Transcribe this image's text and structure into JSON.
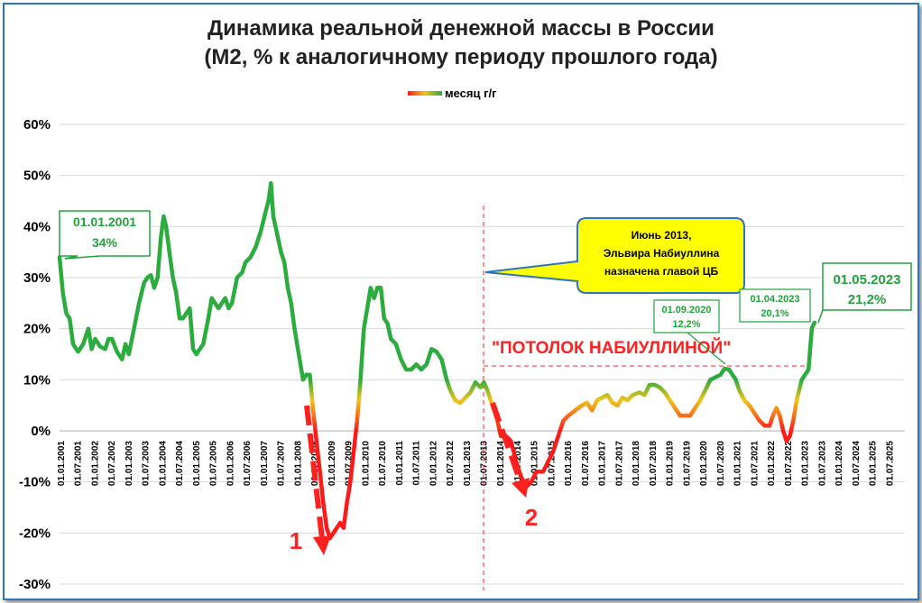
{
  "chart_data": {
    "type": "line",
    "title": "Динамика реальной денежной массы в России",
    "subtitle": "(М2, % к аналогичному периоду прошлого года)",
    "legend": "месяц г/г",
    "legend_position": "top-center",
    "grid": "horizontal",
    "ylim": [
      -30,
      60
    ],
    "y_ticks": [
      "60%",
      "50%",
      "40%",
      "30%",
      "20%",
      "10%",
      "0%",
      "-10%",
      "-20%",
      "-30%"
    ],
    "x_ticks": [
      "01.01.2001",
      "01.07.2001",
      "01.01.2002",
      "01.07.2002",
      "01.01.2003",
      "01.07.2003",
      "01.01.2004",
      "01.07.2004",
      "01.01.2005",
      "01.07.2005",
      "01.01.2006",
      "01.07.2006",
      "01.01.2007",
      "01.07.2007",
      "01.01.2008",
      "01.07.2008",
      "01.01.2009",
      "01.07.2009",
      "01.01.2010",
      "01.07.2010",
      "01.01.2011",
      "01.07.2011",
      "01.01.2012",
      "01.07.2012",
      "01.01.2013",
      "01.07.2013",
      "01.01.2014",
      "01.07.2014",
      "01.01.2015",
      "01.07.2015",
      "01.01.2016",
      "01.07.2016",
      "01.01.2017",
      "01.07.2017",
      "01.01.2018",
      "01.07.2018",
      "01.01.2019",
      "01.07.2019",
      "01.01.2020",
      "01.07.2020",
      "01.01.2021",
      "01.07.2021",
      "01.01.2022",
      "01.07.2022",
      "01.01.2023",
      "01.07.2023",
      "01.01.2024",
      "01.07.2024",
      "01.01.2025",
      "01.07.2025"
    ],
    "series": [
      {
        "name": "месяц г/г",
        "points": [
          [
            2001.0,
            34
          ],
          [
            2001.1,
            27
          ],
          [
            2001.2,
            23
          ],
          [
            2001.3,
            22
          ],
          [
            2001.4,
            17
          ],
          [
            2001.55,
            15.5
          ],
          [
            2001.7,
            17
          ],
          [
            2001.85,
            20
          ],
          [
            2001.95,
            16
          ],
          [
            2002.05,
            18
          ],
          [
            2002.2,
            16.5
          ],
          [
            2002.35,
            16
          ],
          [
            2002.45,
            18
          ],
          [
            2002.55,
            18
          ],
          [
            2002.7,
            15.5
          ],
          [
            2002.85,
            14
          ],
          [
            2002.95,
            17
          ],
          [
            2003.05,
            15
          ],
          [
            2003.2,
            20
          ],
          [
            2003.35,
            25
          ],
          [
            2003.5,
            29
          ],
          [
            2003.6,
            30
          ],
          [
            2003.7,
            30.5
          ],
          [
            2003.8,
            28
          ],
          [
            2003.9,
            30
          ],
          [
            2004.0,
            38
          ],
          [
            2004.08,
            42
          ],
          [
            2004.15,
            40
          ],
          [
            2004.25,
            35
          ],
          [
            2004.35,
            30
          ],
          [
            2004.45,
            27
          ],
          [
            2004.55,
            22
          ],
          [
            2004.65,
            22
          ],
          [
            2004.75,
            23
          ],
          [
            2004.85,
            24
          ],
          [
            2004.95,
            16
          ],
          [
            2005.05,
            15
          ],
          [
            2005.15,
            16
          ],
          [
            2005.25,
            17
          ],
          [
            2005.4,
            22
          ],
          [
            2005.5,
            26
          ],
          [
            2005.6,
            25
          ],
          [
            2005.7,
            24
          ],
          [
            2005.8,
            25
          ],
          [
            2005.9,
            26
          ],
          [
            2006.0,
            24
          ],
          [
            2006.1,
            25
          ],
          [
            2006.25,
            30
          ],
          [
            2006.4,
            31
          ],
          [
            2006.5,
            33
          ],
          [
            2006.65,
            34
          ],
          [
            2006.8,
            36
          ],
          [
            2006.95,
            39
          ],
          [
            2007.1,
            43
          ],
          [
            2007.18,
            45
          ],
          [
            2007.25,
            48.5
          ],
          [
            2007.32,
            42
          ],
          [
            2007.42,
            39
          ],
          [
            2007.55,
            35
          ],
          [
            2007.65,
            33
          ],
          [
            2007.75,
            28
          ],
          [
            2007.85,
            25
          ],
          [
            2007.95,
            20
          ],
          [
            2008.05,
            16
          ],
          [
            2008.2,
            10
          ],
          [
            2008.3,
            11
          ],
          [
            2008.4,
            11
          ],
          [
            2008.5,
            4
          ],
          [
            2008.6,
            -2
          ],
          [
            2008.7,
            -8
          ],
          [
            2008.8,
            -14
          ],
          [
            2008.9,
            -19
          ],
          [
            2009.0,
            -21
          ],
          [
            2009.1,
            -20
          ],
          [
            2009.2,
            -19
          ],
          [
            2009.3,
            -18
          ],
          [
            2009.4,
            -19
          ],
          [
            2009.5,
            -14
          ],
          [
            2009.6,
            -10
          ],
          [
            2009.7,
            -4
          ],
          [
            2009.8,
            2
          ],
          [
            2009.9,
            10
          ],
          [
            2010.0,
            20
          ],
          [
            2010.1,
            24
          ],
          [
            2010.2,
            28
          ],
          [
            2010.3,
            26
          ],
          [
            2010.4,
            28
          ],
          [
            2010.5,
            28
          ],
          [
            2010.6,
            22
          ],
          [
            2010.7,
            21
          ],
          [
            2010.8,
            18
          ],
          [
            2010.95,
            17
          ],
          [
            2011.1,
            14
          ],
          [
            2011.25,
            12
          ],
          [
            2011.4,
            12
          ],
          [
            2011.55,
            13
          ],
          [
            2011.7,
            12
          ],
          [
            2011.85,
            13
          ],
          [
            2012.0,
            16
          ],
          [
            2012.15,
            15.5
          ],
          [
            2012.3,
            14
          ],
          [
            2012.45,
            10
          ],
          [
            2012.55,
            8
          ],
          [
            2012.7,
            6
          ],
          [
            2012.85,
            5.5
          ],
          [
            2013.0,
            6.5
          ],
          [
            2013.15,
            7.5
          ],
          [
            2013.3,
            9.5
          ],
          [
            2013.45,
            8.5
          ],
          [
            2013.55,
            9.5
          ],
          [
            2013.65,
            8
          ],
          [
            2013.8,
            5
          ],
          [
            2013.95,
            2
          ],
          [
            2014.05,
            -1
          ],
          [
            2014.2,
            -1
          ],
          [
            2014.35,
            -2
          ],
          [
            2014.5,
            -6
          ],
          [
            2014.65,
            -9
          ],
          [
            2014.8,
            -11
          ],
          [
            2014.95,
            -10
          ],
          [
            2015.1,
            -8
          ],
          [
            2015.3,
            -8
          ],
          [
            2015.45,
            -6
          ],
          [
            2015.6,
            -4
          ],
          [
            2015.75,
            -1
          ],
          [
            2015.9,
            2
          ],
          [
            2016.05,
            3
          ],
          [
            2016.25,
            4
          ],
          [
            2016.45,
            5
          ],
          [
            2016.6,
            5.5
          ],
          [
            2016.75,
            4
          ],
          [
            2016.9,
            6
          ],
          [
            2017.05,
            6.5
          ],
          [
            2017.2,
            7
          ],
          [
            2017.35,
            5.5
          ],
          [
            2017.5,
            5
          ],
          [
            2017.65,
            6.5
          ],
          [
            2017.8,
            6
          ],
          [
            2017.95,
            7
          ],
          [
            2018.15,
            7.5
          ],
          [
            2018.3,
            7
          ],
          [
            2018.45,
            9
          ],
          [
            2018.6,
            9
          ],
          [
            2018.75,
            8.5
          ],
          [
            2018.9,
            7.5
          ],
          [
            2019.05,
            6
          ],
          [
            2019.2,
            4.5
          ],
          [
            2019.35,
            3
          ],
          [
            2019.5,
            3
          ],
          [
            2019.65,
            3
          ],
          [
            2019.8,
            4.5
          ],
          [
            2019.95,
            6
          ],
          [
            2020.1,
            8
          ],
          [
            2020.25,
            10
          ],
          [
            2020.4,
            10.5
          ],
          [
            2020.55,
            11
          ],
          [
            2020.67,
            12.2
          ],
          [
            2020.8,
            12
          ],
          [
            2020.9,
            11
          ],
          [
            2021.0,
            10
          ],
          [
            2021.1,
            8
          ],
          [
            2021.25,
            6
          ],
          [
            2021.4,
            5
          ],
          [
            2021.55,
            3.5
          ],
          [
            2021.7,
            2
          ],
          [
            2021.85,
            1
          ],
          [
            2022.0,
            1
          ],
          [
            2022.1,
            3
          ],
          [
            2022.2,
            4.5
          ],
          [
            2022.3,
            3
          ],
          [
            2022.4,
            0
          ],
          [
            2022.5,
            -2
          ],
          [
            2022.6,
            -1
          ],
          [
            2022.7,
            2
          ],
          [
            2022.8,
            6
          ],
          [
            2022.95,
            10
          ],
          [
            2023.05,
            11
          ],
          [
            2023.15,
            12
          ],
          [
            2023.25,
            20.1
          ],
          [
            2023.33,
            21.2
          ]
        ]
      }
    ],
    "annotations": {
      "start_label_date": "01.01.2001",
      "start_label_value": "34%",
      "sep2020_date": "01.09.2020",
      "sep2020_value": "12,2%",
      "apr2023_date": "01.04.2023",
      "apr2023_value": "20,1%",
      "may2023_date": "01.05.2023",
      "may2023_value": "21,2%",
      "callout_line1": "Июнь 2013,",
      "callout_line2": "Эльвира Набиуллина",
      "callout_line3": "назначена главой ЦБ",
      "ceiling_label": "\"ПОТОЛОК НАБИУЛЛИНОЙ\"",
      "arrow1_label": "1",
      "arrow2_label": "2"
    },
    "colors": {
      "line_high": "#2cab3e",
      "line_mid": "#f0c419",
      "line_low": "#ff1a1a",
      "red_marks": "#ff2020",
      "callout_fill": "#ffff00",
      "frame": "#2e75b6"
    }
  }
}
